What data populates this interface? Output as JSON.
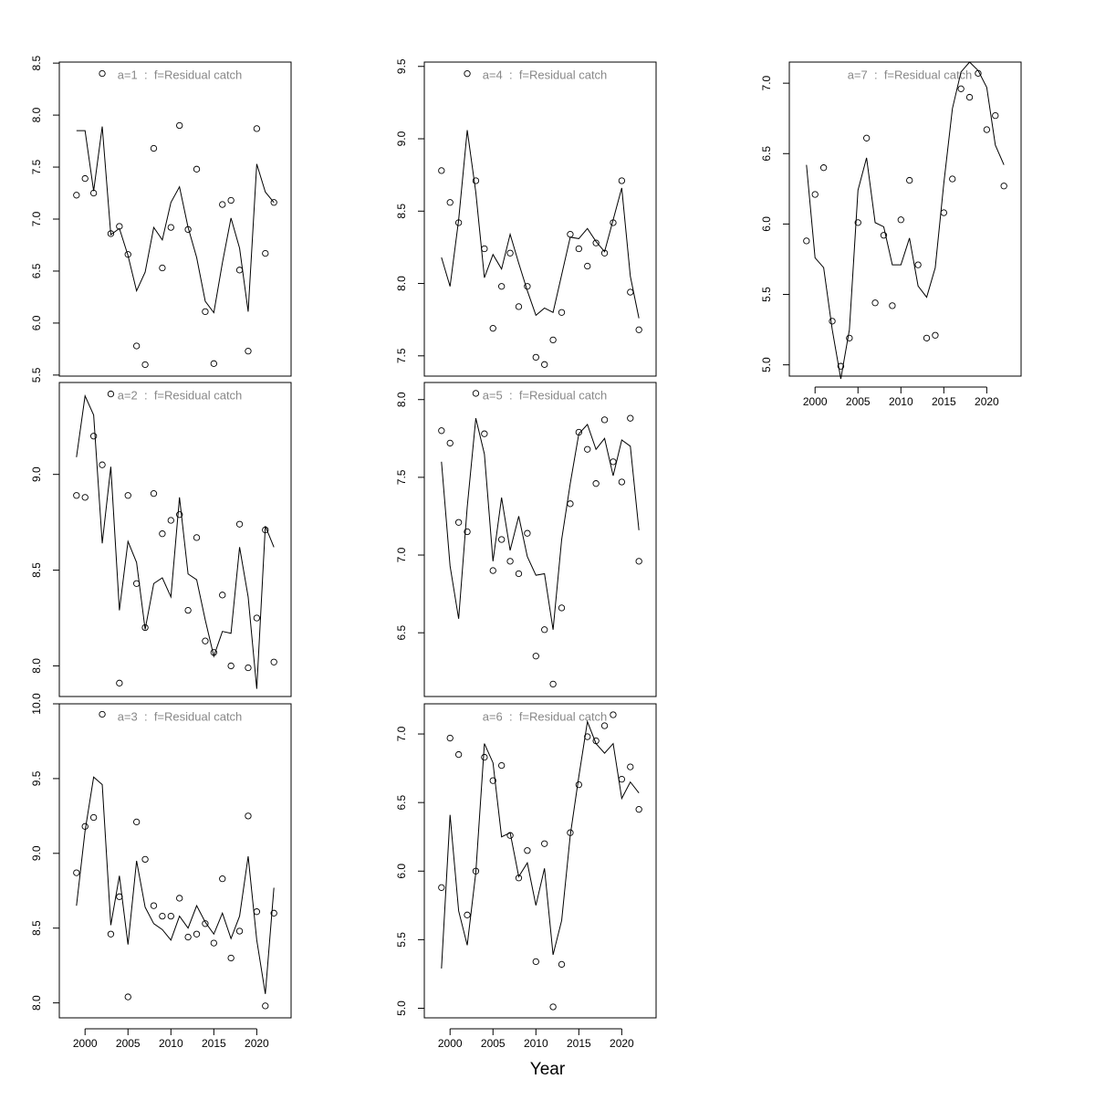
{
  "xlabel": "Year",
  "chart_data": [
    {
      "type": "scatter-line",
      "title": "a=1  :  f=Residual catch",
      "x": [
        1999,
        2000,
        2001,
        2002,
        2003,
        2004,
        2005,
        2006,
        2007,
        2008,
        2009,
        2010,
        2011,
        2012,
        2013,
        2014,
        2015,
        2016,
        2017,
        2018,
        2019,
        2020,
        2021,
        2022
      ],
      "xlim": [
        1997,
        2024
      ],
      "ylim": [
        5.49,
        8.51
      ],
      "yticks": [
        5.5,
        {
          "value": 6,
          "label": "6.0"
        },
        6.5,
        {
          "value": 7,
          "label": "7.0"
        },
        7.5,
        {
          "value": 8,
          "label": "8.0"
        },
        8.5
      ],
      "series": [
        {
          "mode": "points",
          "color": "#000000",
          "values": [
            7.23,
            7.39,
            7.25,
            8.4,
            6.86,
            6.93,
            6.66,
            5.78,
            5.6,
            7.68,
            6.53,
            6.92,
            7.9,
            6.9,
            7.48,
            6.11,
            5.61,
            7.14,
            7.18,
            6.51,
            5.73,
            7.87,
            6.67,
            7.16
          ]
        },
        {
          "mode": "lines",
          "color": "#000000",
          "values": [
            7.85,
            7.85,
            7.27,
            7.89,
            6.85,
            6.91,
            6.65,
            6.31,
            6.49,
            6.92,
            6.8,
            7.16,
            7.31,
            6.92,
            6.63,
            6.21,
            6.1,
            6.58,
            7.01,
            6.72,
            6.11,
            7.53,
            7.26,
            7.16
          ]
        }
      ]
    },
    {
      "type": "scatter-line",
      "title": "a=4  :  f=Residual catch",
      "x": [
        1999,
        2000,
        2001,
        2002,
        2003,
        2004,
        2005,
        2006,
        2007,
        2008,
        2009,
        2010,
        2011,
        2012,
        2013,
        2014,
        2015,
        2016,
        2017,
        2018,
        2019,
        2020,
        2021,
        2022
      ],
      "xlim": [
        1997,
        2024
      ],
      "ylim": [
        7.36,
        9.53
      ],
      "yticks": [
        7.5,
        {
          "value": 8,
          "label": "8.0"
        },
        8.5,
        {
          "value": 9,
          "label": "9.0"
        },
        9.5
      ],
      "series": [
        {
          "mode": "points",
          "color": "#000000",
          "values": [
            8.78,
            8.56,
            8.42,
            9.45,
            8.71,
            8.24,
            7.69,
            7.98,
            8.21,
            7.84,
            7.98,
            7.49,
            7.44,
            7.61,
            7.8,
            8.34,
            8.24,
            8.12,
            8.28,
            8.21,
            8.42,
            8.71,
            7.94,
            7.68
          ]
        },
        {
          "mode": "lines",
          "color": "#000000",
          "values": [
            8.18,
            7.98,
            8.44,
            9.06,
            8.63,
            8.04,
            8.2,
            8.1,
            8.34,
            8.14,
            7.95,
            7.78,
            7.83,
            7.8,
            8.06,
            8.32,
            8.31,
            8.38,
            8.29,
            8.22,
            8.44,
            8.66,
            8.05,
            7.76
          ]
        }
      ]
    },
    {
      "type": "scatter-line",
      "title": "a=7  :  f=Residual catch",
      "x": [
        1999,
        2000,
        2001,
        2002,
        2003,
        2004,
        2005,
        2006,
        2007,
        2008,
        2009,
        2010,
        2011,
        2012,
        2013,
        2014,
        2015,
        2016,
        2017,
        2018,
        2019,
        2020,
        2021,
        2022
      ],
      "xlim": [
        1997,
        2024
      ],
      "xticks": [
        2000,
        2005,
        2010,
        2015,
        2020
      ],
      "ylim": [
        4.92,
        7.15
      ],
      "yticks": [
        {
          "value": 5,
          "label": "5.0"
        },
        5.5,
        {
          "value": 6,
          "label": "6.0"
        },
        6.5,
        {
          "value": 7,
          "label": "7.0"
        }
      ],
      "series": [
        {
          "mode": "points",
          "color": "#000000",
          "values": [
            5.88,
            6.21,
            6.4,
            5.31,
            4.99,
            5.19,
            6.01,
            6.61,
            5.44,
            5.92,
            5.42,
            6.03,
            6.31,
            5.71,
            5.19,
            5.21,
            6.08,
            6.32,
            6.96,
            6.9,
            7.07,
            6.67,
            6.77,
            6.27
          ]
        },
        {
          "mode": "lines",
          "color": "#000000",
          "values": [
            6.42,
            5.76,
            5.69,
            5.25,
            4.9,
            5.25,
            6.24,
            6.47,
            6.01,
            5.98,
            5.71,
            5.71,
            5.9,
            5.56,
            5.48,
            5.69,
            6.29,
            6.82,
            7.08,
            7.15,
            7.09,
            6.97,
            6.56,
            6.42
          ]
        }
      ]
    },
    {
      "type": "scatter-line",
      "title": "a=2  :  f=Residual catch",
      "x": [
        1999,
        2000,
        2001,
        2002,
        2003,
        2004,
        2005,
        2006,
        2007,
        2008,
        2009,
        2010,
        2011,
        2012,
        2013,
        2014,
        2015,
        2016,
        2017,
        2018,
        2019,
        2020,
        2021,
        2022
      ],
      "xlim": [
        1997,
        2024
      ],
      "ylim": [
        7.84,
        9.48
      ],
      "yticks": [
        {
          "value": 8,
          "label": "8.0"
        },
        8.5,
        {
          "value": 9,
          "label": "9.0"
        }
      ],
      "series": [
        {
          "mode": "points",
          "color": "#000000",
          "values": [
            8.89,
            8.88,
            9.2,
            9.05,
            9.42,
            7.91,
            8.89,
            8.43,
            8.2,
            8.9,
            8.69,
            8.76,
            8.79,
            8.29,
            8.67,
            8.13,
            8.07,
            8.37,
            8.0,
            8.74,
            7.99,
            8.25,
            8.71,
            8.02
          ]
        },
        {
          "mode": "lines",
          "color": "#000000",
          "values": [
            9.09,
            9.41,
            9.31,
            8.64,
            9.04,
            8.29,
            8.65,
            8.54,
            8.19,
            8.43,
            8.46,
            8.36,
            8.88,
            8.48,
            8.45,
            8.24,
            8.05,
            8.18,
            8.17,
            8.62,
            8.36,
            7.88,
            8.73,
            8.62
          ]
        }
      ]
    },
    {
      "type": "scatter-line",
      "title": "a=5  :  f=Residual catch",
      "x": [
        1999,
        2000,
        2001,
        2002,
        2003,
        2004,
        2005,
        2006,
        2007,
        2008,
        2009,
        2010,
        2011,
        2012,
        2013,
        2014,
        2015,
        2016,
        2017,
        2018,
        2019,
        2020,
        2021,
        2022
      ],
      "xlim": [
        1997,
        2024
      ],
      "ylim": [
        6.09,
        8.11
      ],
      "yticks": [
        6.5,
        {
          "value": 7,
          "label": "7.0"
        },
        7.5,
        {
          "value": 8,
          "label": "8.0"
        }
      ],
      "series": [
        {
          "mode": "points",
          "color": "#000000",
          "values": [
            7.8,
            7.72,
            7.21,
            7.15,
            8.04,
            7.78,
            6.9,
            7.1,
            6.96,
            6.88,
            7.14,
            6.35,
            6.52,
            6.17,
            6.66,
            7.33,
            7.79,
            7.68,
            7.46,
            7.87,
            7.6,
            7.47,
            7.88,
            6.96
          ]
        },
        {
          "mode": "lines",
          "color": "#000000",
          "values": [
            7.6,
            6.93,
            6.59,
            7.31,
            7.88,
            7.65,
            6.96,
            7.37,
            7.03,
            7.25,
            6.99,
            6.87,
            6.88,
            6.52,
            7.1,
            7.46,
            7.78,
            7.84,
            7.68,
            7.75,
            7.51,
            7.74,
            7.7,
            7.16
          ]
        }
      ]
    },
    {
      "type": "scatter-line",
      "title": "a=3  :  f=Residual catch",
      "x": [
        1999,
        2000,
        2001,
        2002,
        2003,
        2004,
        2005,
        2006,
        2007,
        2008,
        2009,
        2010,
        2011,
        2012,
        2013,
        2014,
        2015,
        2016,
        2017,
        2018,
        2019,
        2020,
        2021,
        2022
      ],
      "xlim": [
        1997,
        2024
      ],
      "xticks": [
        2000,
        2005,
        2010,
        2015,
        2020
      ],
      "ylim": [
        7.9,
        10.0
      ],
      "yticks": [
        {
          "value": 8,
          "label": "8.0"
        },
        8.5,
        {
          "value": 9,
          "label": "9.0"
        },
        9.5,
        {
          "value": 10,
          "label": "10.0"
        }
      ],
      "series": [
        {
          "mode": "points",
          "color": "#000000",
          "values": [
            8.87,
            9.18,
            9.24,
            9.93,
            8.46,
            8.71,
            8.04,
            9.21,
            8.96,
            8.65,
            8.58,
            8.58,
            8.7,
            8.44,
            8.46,
            8.53,
            8.4,
            8.83,
            8.3,
            8.48,
            9.25,
            8.61,
            7.98,
            8.6
          ]
        },
        {
          "mode": "lines",
          "color": "#000000",
          "values": [
            8.65,
            9.15,
            9.51,
            9.46,
            8.52,
            8.85,
            8.39,
            8.95,
            8.64,
            8.53,
            8.49,
            8.42,
            8.58,
            8.5,
            8.65,
            8.54,
            8.46,
            8.6,
            8.43,
            8.58,
            8.98,
            8.42,
            8.06,
            8.77
          ]
        }
      ]
    },
    {
      "type": "scatter-line",
      "title": "a=6  :  f=Residual catch",
      "x": [
        1999,
        2000,
        2001,
        2002,
        2003,
        2004,
        2005,
        2006,
        2007,
        2008,
        2009,
        2010,
        2011,
        2012,
        2013,
        2014,
        2015,
        2016,
        2017,
        2018,
        2019,
        2020,
        2021,
        2022
      ],
      "xlim": [
        1997,
        2024
      ],
      "xticks": [
        2000,
        2005,
        2010,
        2015,
        2020
      ],
      "ylim": [
        4.93,
        7.22
      ],
      "yticks": [
        {
          "value": 5,
          "label": "5.0"
        },
        5.5,
        {
          "value": 6,
          "label": "6.0"
        },
        6.5,
        {
          "value": 7,
          "label": "7.0"
        }
      ],
      "series": [
        {
          "mode": "points",
          "color": "#000000",
          "values": [
            5.88,
            6.97,
            6.85,
            5.68,
            6.0,
            6.83,
            6.66,
            6.77,
            6.26,
            5.95,
            6.15,
            5.34,
            6.2,
            5.01,
            5.32,
            6.28,
            6.63,
            6.98,
            6.95,
            7.06,
            7.14,
            6.67,
            6.76,
            6.45
          ]
        },
        {
          "mode": "lines",
          "color": "#000000",
          "values": [
            5.29,
            6.41,
            5.71,
            5.46,
            5.99,
            6.93,
            6.79,
            6.25,
            6.28,
            5.96,
            6.06,
            5.75,
            6.02,
            5.39,
            5.64,
            6.26,
            6.69,
            7.09,
            6.93,
            6.86,
            6.93,
            6.53,
            6.65,
            6.57
          ]
        }
      ]
    }
  ]
}
